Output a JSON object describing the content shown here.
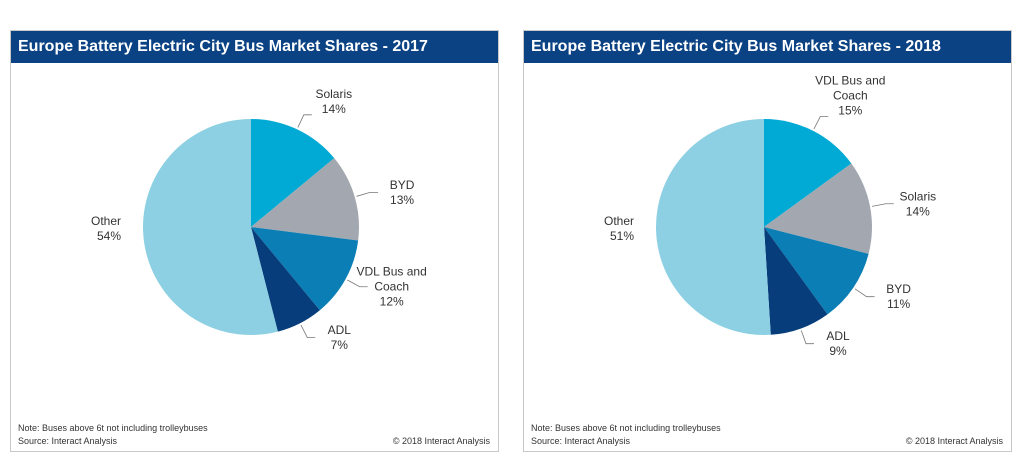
{
  "chart_data": [
    {
      "type": "pie",
      "title": "Europe Battery Electric City Bus Market Shares - 2017",
      "slices": [
        {
          "label": "Solaris",
          "label_lines": [
            "Solaris"
          ],
          "value": 14,
          "pct_text": "14%",
          "color": "#00aad4"
        },
        {
          "label": "BYD",
          "label_lines": [
            "BYD"
          ],
          "value": 13,
          "pct_text": "13%",
          "color": "#a3a8b0"
        },
        {
          "label": "VDL Bus and Coach",
          "label_lines": [
            "VDL Bus and",
            "Coach"
          ],
          "value": 12,
          "pct_text": "12%",
          "color": "#0b7eb5"
        },
        {
          "label": "ADL",
          "label_lines": [
            "ADL"
          ],
          "value": 7,
          "pct_text": "7%",
          "color": "#063d7a"
        },
        {
          "label": "Other",
          "label_lines": [
            "Other"
          ],
          "value": 54,
          "pct_text": "54%",
          "color": "#8dd0e3"
        }
      ],
      "note": "Note: Buses above 6t not including trolleybuses",
      "source": "Source: Interact Analysis",
      "copyright": "© 2018 Interact Analysis"
    },
    {
      "type": "pie",
      "title": "Europe Battery Electric City Bus Market Shares - 2018",
      "slices": [
        {
          "label": "VDL Bus and Coach",
          "label_lines": [
            "VDL Bus and",
            "Coach"
          ],
          "value": 15,
          "pct_text": "15%",
          "color": "#00aad4"
        },
        {
          "label": "Solaris",
          "label_lines": [
            "Solaris"
          ],
          "value": 14,
          "pct_text": "14%",
          "color": "#a3a8b0"
        },
        {
          "label": "BYD",
          "label_lines": [
            "BYD"
          ],
          "value": 11,
          "pct_text": "11%",
          "color": "#0b7eb5"
        },
        {
          "label": "ADL",
          "label_lines": [
            "ADL"
          ],
          "value": 9,
          "pct_text": "9%",
          "color": "#063d7a"
        },
        {
          "label": "Other",
          "label_lines": [
            "Other"
          ],
          "value": 51,
          "pct_text": "51%",
          "color": "#8dd0e3"
        }
      ],
      "note": "Note: Buses above 6t not including trolleybuses",
      "source": "Source: Interact Analysis",
      "copyright": "© 2018 Interact Analysis"
    }
  ]
}
